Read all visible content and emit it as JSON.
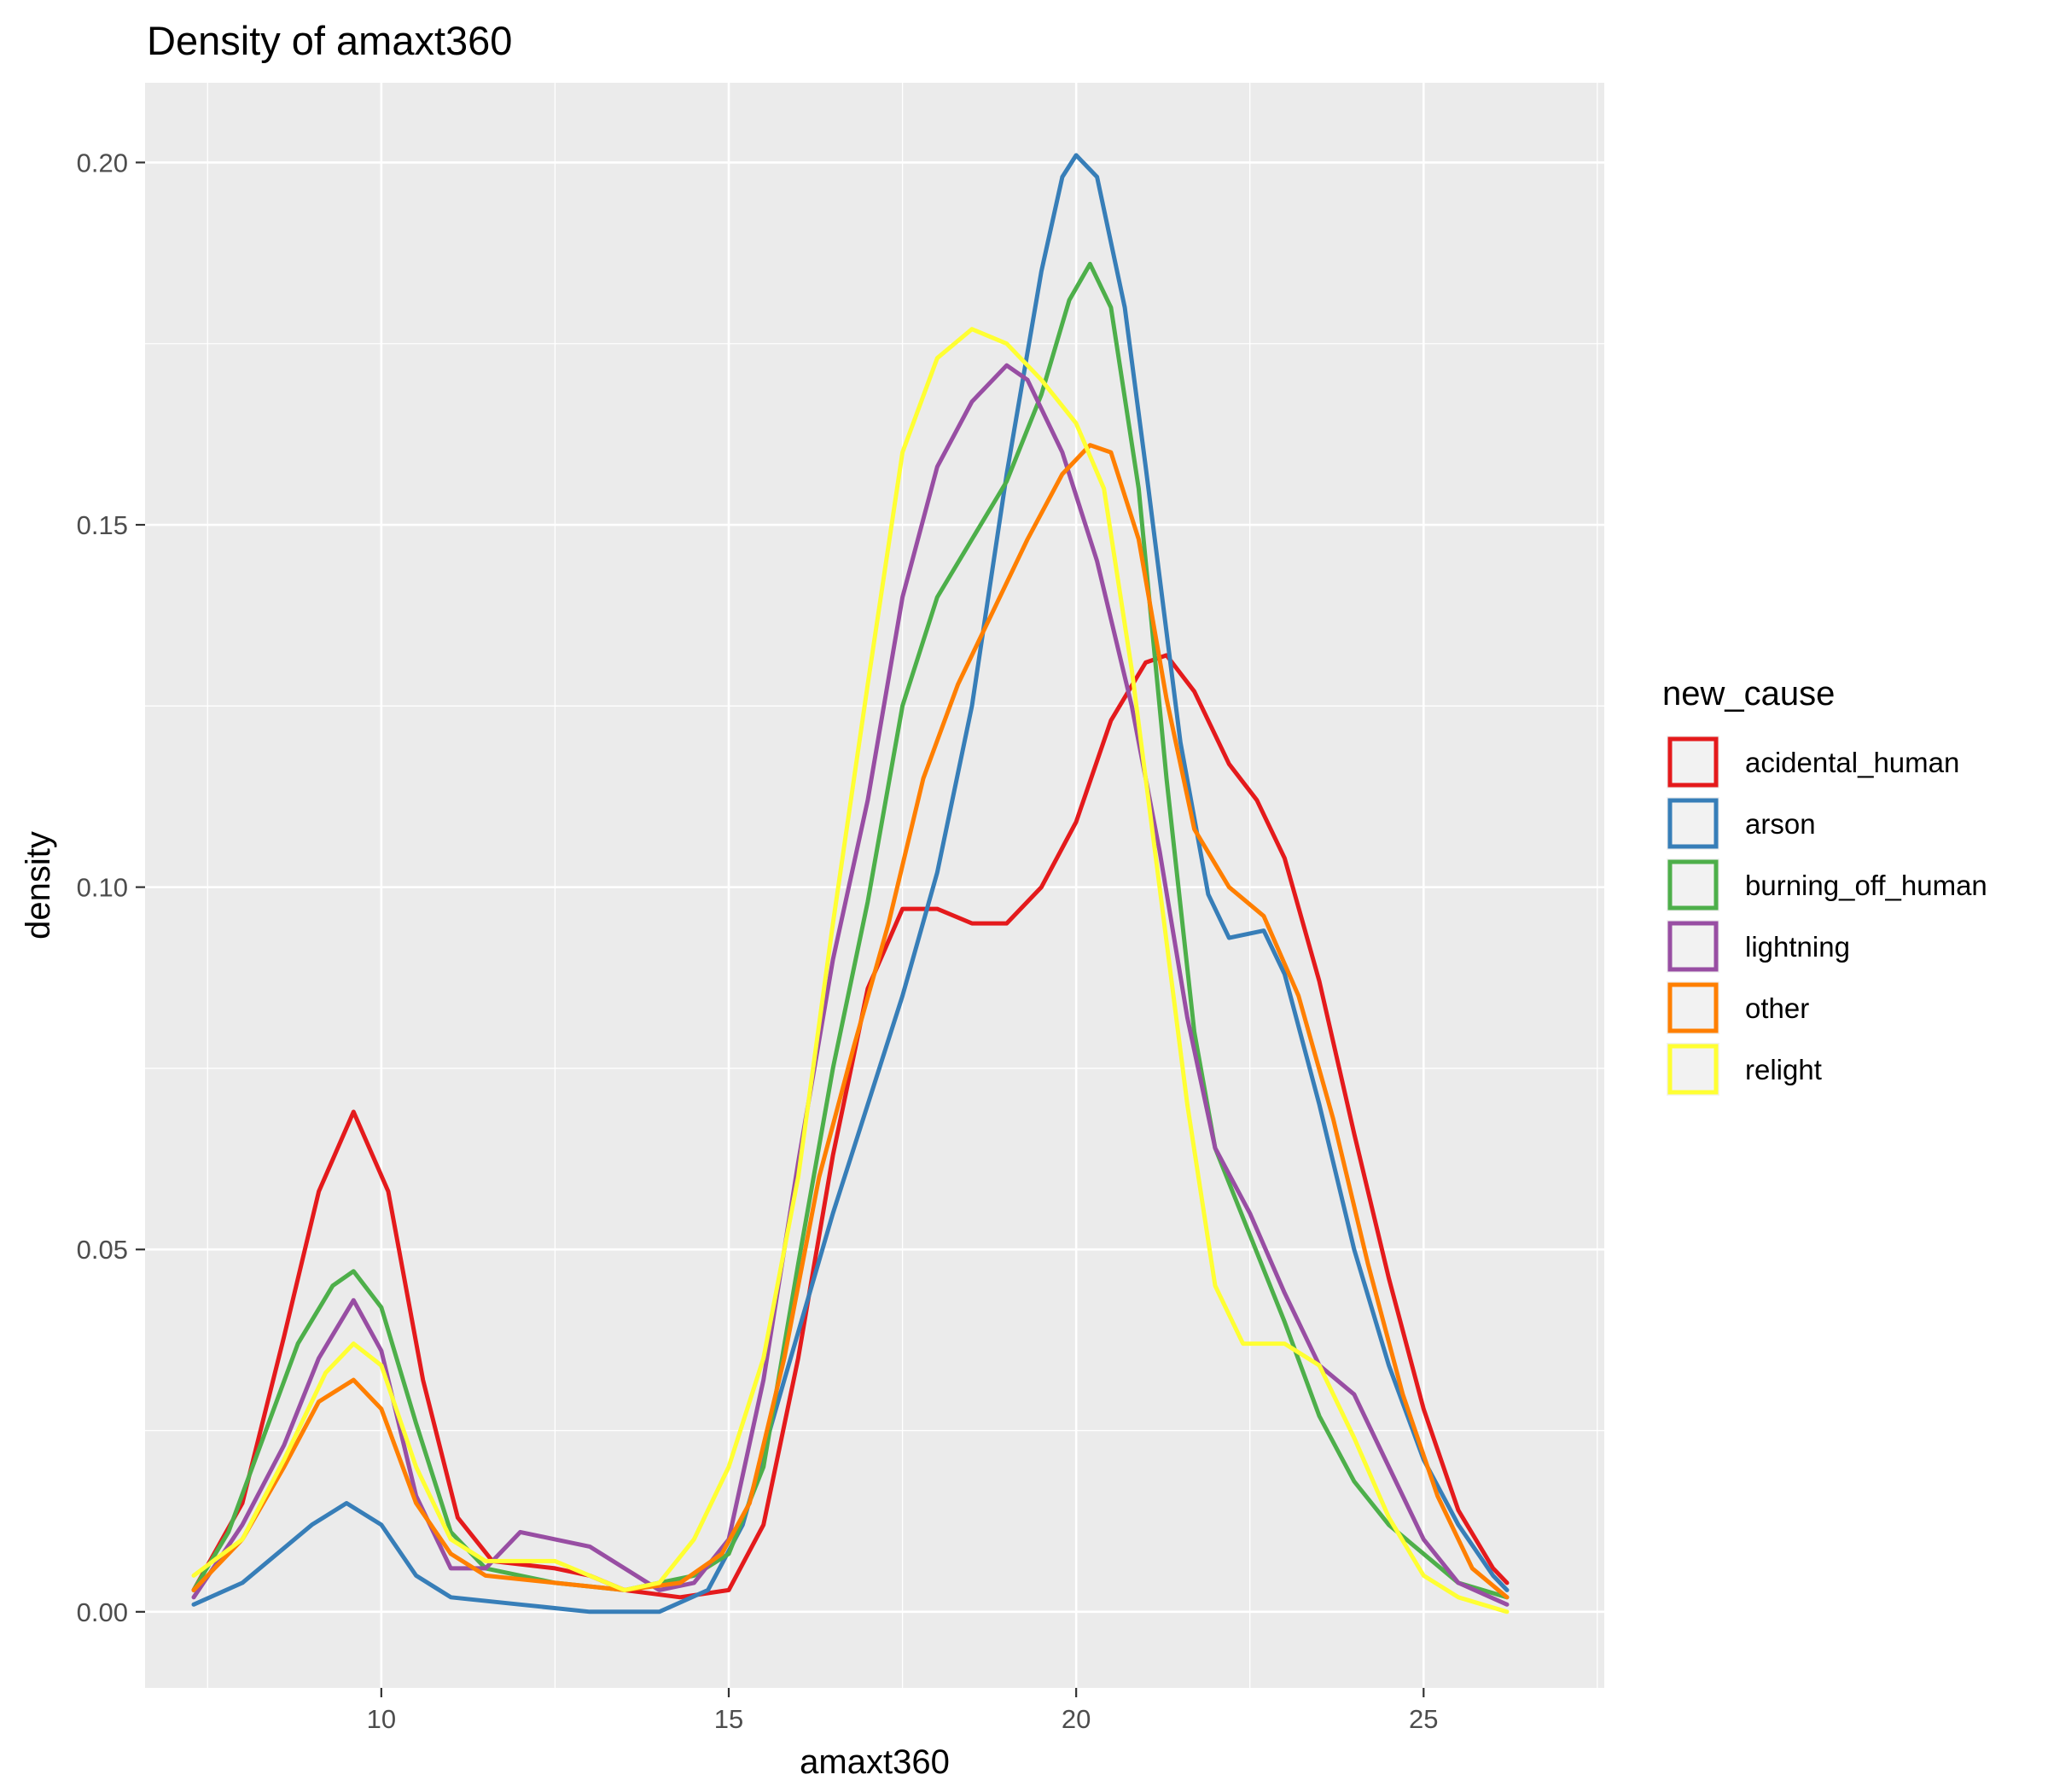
{
  "chart_data": {
    "type": "line",
    "title": "Density of amaxt360",
    "xlabel": "amaxt360",
    "ylabel": "density",
    "xlim": [
      6.6,
      27.6
    ],
    "ylim": [
      -0.0105,
      0.211
    ],
    "x_ticks": [
      10,
      15,
      20,
      25
    ],
    "y_ticks": [
      0.0,
      0.05,
      0.1,
      0.15,
      0.2
    ],
    "x_tick_labels": [
      "10",
      "15",
      "20",
      "25"
    ],
    "y_tick_labels": [
      "0.00",
      "0.05",
      "0.10",
      "0.15",
      "0.20"
    ],
    "grid": true,
    "legend": {
      "title": "new_cause",
      "position": "right"
    },
    "series": [
      {
        "name": "acidental_human",
        "color": "#E41A1C",
        "points": [
          [
            7.3,
            0.003
          ],
          [
            8.0,
            0.015
          ],
          [
            8.6,
            0.038
          ],
          [
            9.1,
            0.058
          ],
          [
            9.6,
            0.069
          ],
          [
            10.1,
            0.058
          ],
          [
            10.6,
            0.032
          ],
          [
            11.1,
            0.013
          ],
          [
            11.6,
            0.007
          ],
          [
            12.5,
            0.006
          ],
          [
            13.0,
            0.005
          ],
          [
            13.5,
            0.003
          ],
          [
            14.3,
            0.002
          ],
          [
            15.0,
            0.003
          ],
          [
            15.5,
            0.012
          ],
          [
            16.0,
            0.035
          ],
          [
            16.5,
            0.063
          ],
          [
            17.0,
            0.086
          ],
          [
            17.5,
            0.097
          ],
          [
            18.0,
            0.097
          ],
          [
            18.5,
            0.095
          ],
          [
            19.0,
            0.095
          ],
          [
            19.5,
            0.1
          ],
          [
            20.0,
            0.109
          ],
          [
            20.5,
            0.123
          ],
          [
            21.0,
            0.131
          ],
          [
            21.3,
            0.132
          ],
          [
            21.7,
            0.127
          ],
          [
            22.2,
            0.117
          ],
          [
            22.6,
            0.112
          ],
          [
            23.0,
            0.104
          ],
          [
            23.5,
            0.087
          ],
          [
            24.0,
            0.066
          ],
          [
            24.5,
            0.046
          ],
          [
            25.0,
            0.028
          ],
          [
            25.5,
            0.014
          ],
          [
            26.0,
            0.006
          ],
          [
            26.2,
            0.004
          ]
        ]
      },
      {
        "name": "arson",
        "color": "#377EB8",
        "points": [
          [
            7.3,
            0.001
          ],
          [
            8.0,
            0.004
          ],
          [
            8.5,
            0.008
          ],
          [
            9.0,
            0.012
          ],
          [
            9.5,
            0.015
          ],
          [
            10.0,
            0.012
          ],
          [
            10.5,
            0.005
          ],
          [
            11.0,
            0.002
          ],
          [
            12.0,
            0.001
          ],
          [
            13.0,
            0.0
          ],
          [
            14.0,
            0.0
          ],
          [
            14.7,
            0.003
          ],
          [
            15.2,
            0.012
          ],
          [
            15.8,
            0.032
          ],
          [
            16.5,
            0.055
          ],
          [
            17.0,
            0.07
          ],
          [
            17.5,
            0.085
          ],
          [
            18.0,
            0.102
          ],
          [
            18.5,
            0.125
          ],
          [
            19.0,
            0.157
          ],
          [
            19.5,
            0.185
          ],
          [
            19.8,
            0.198
          ],
          [
            20.0,
            0.201
          ],
          [
            20.3,
            0.198
          ],
          [
            20.7,
            0.18
          ],
          [
            21.0,
            0.158
          ],
          [
            21.5,
            0.12
          ],
          [
            21.9,
            0.099
          ],
          [
            22.2,
            0.093
          ],
          [
            22.7,
            0.094
          ],
          [
            23.0,
            0.088
          ],
          [
            23.5,
            0.07
          ],
          [
            24.0,
            0.05
          ],
          [
            24.5,
            0.034
          ],
          [
            25.0,
            0.021
          ],
          [
            25.5,
            0.012
          ],
          [
            26.0,
            0.005
          ],
          [
            26.2,
            0.003
          ]
        ]
      },
      {
        "name": "burning_off_human",
        "color": "#4DAF4A",
        "points": [
          [
            7.3,
            0.003
          ],
          [
            7.8,
            0.011
          ],
          [
            8.3,
            0.024
          ],
          [
            8.8,
            0.037
          ],
          [
            9.3,
            0.045
          ],
          [
            9.6,
            0.047
          ],
          [
            10.0,
            0.042
          ],
          [
            10.5,
            0.026
          ],
          [
            11.0,
            0.011
          ],
          [
            11.5,
            0.006
          ],
          [
            12.5,
            0.004
          ],
          [
            13.5,
            0.003
          ],
          [
            14.5,
            0.005
          ],
          [
            15.0,
            0.008
          ],
          [
            15.5,
            0.02
          ],
          [
            16.0,
            0.048
          ],
          [
            16.5,
            0.075
          ],
          [
            17.0,
            0.098
          ],
          [
            17.5,
            0.125
          ],
          [
            18.0,
            0.14
          ],
          [
            18.5,
            0.148
          ],
          [
            19.0,
            0.156
          ],
          [
            19.5,
            0.168
          ],
          [
            19.9,
            0.181
          ],
          [
            20.2,
            0.186
          ],
          [
            20.5,
            0.18
          ],
          [
            20.9,
            0.155
          ],
          [
            21.3,
            0.115
          ],
          [
            21.7,
            0.08
          ],
          [
            22.0,
            0.064
          ],
          [
            22.5,
            0.052
          ],
          [
            23.0,
            0.04
          ],
          [
            23.5,
            0.027
          ],
          [
            24.0,
            0.018
          ],
          [
            24.5,
            0.012
          ],
          [
            25.0,
            0.008
          ],
          [
            25.5,
            0.004
          ],
          [
            26.2,
            0.002
          ]
        ]
      },
      {
        "name": "lightning",
        "color": "#984EA3",
        "points": [
          [
            7.3,
            0.002
          ],
          [
            8.0,
            0.012
          ],
          [
            8.6,
            0.023
          ],
          [
            9.1,
            0.035
          ],
          [
            9.6,
            0.043
          ],
          [
            10.0,
            0.036
          ],
          [
            10.5,
            0.016
          ],
          [
            11.0,
            0.006
          ],
          [
            11.5,
            0.006
          ],
          [
            12.0,
            0.011
          ],
          [
            12.5,
            0.01
          ],
          [
            13.0,
            0.009
          ],
          [
            13.5,
            0.006
          ],
          [
            14.0,
            0.003
          ],
          [
            14.5,
            0.004
          ],
          [
            15.0,
            0.01
          ],
          [
            15.5,
            0.032
          ],
          [
            16.0,
            0.062
          ],
          [
            16.5,
            0.09
          ],
          [
            17.0,
            0.112
          ],
          [
            17.5,
            0.14
          ],
          [
            18.0,
            0.158
          ],
          [
            18.5,
            0.167
          ],
          [
            19.0,
            0.172
          ],
          [
            19.3,
            0.17
          ],
          [
            19.8,
            0.16
          ],
          [
            20.3,
            0.145
          ],
          [
            20.8,
            0.125
          ],
          [
            21.2,
            0.105
          ],
          [
            21.6,
            0.082
          ],
          [
            22.0,
            0.064
          ],
          [
            22.5,
            0.055
          ],
          [
            23.0,
            0.044
          ],
          [
            23.5,
            0.034
          ],
          [
            24.0,
            0.03
          ],
          [
            24.4,
            0.022
          ],
          [
            25.0,
            0.01
          ],
          [
            25.5,
            0.004
          ],
          [
            26.2,
            0.001
          ]
        ]
      },
      {
        "name": "other",
        "color": "#FF7F00",
        "points": [
          [
            7.3,
            0.003
          ],
          [
            8.0,
            0.01
          ],
          [
            8.6,
            0.02
          ],
          [
            9.1,
            0.029
          ],
          [
            9.6,
            0.032
          ],
          [
            10.0,
            0.028
          ],
          [
            10.5,
            0.015
          ],
          [
            11.0,
            0.008
          ],
          [
            11.5,
            0.005
          ],
          [
            12.5,
            0.004
          ],
          [
            13.5,
            0.003
          ],
          [
            14.3,
            0.004
          ],
          [
            14.9,
            0.008
          ],
          [
            15.3,
            0.015
          ],
          [
            15.8,
            0.035
          ],
          [
            16.3,
            0.06
          ],
          [
            16.8,
            0.078
          ],
          [
            17.3,
            0.095
          ],
          [
            17.8,
            0.115
          ],
          [
            18.3,
            0.128
          ],
          [
            18.8,
            0.138
          ],
          [
            19.3,
            0.148
          ],
          [
            19.8,
            0.157
          ],
          [
            20.2,
            0.161
          ],
          [
            20.5,
            0.16
          ],
          [
            20.9,
            0.148
          ],
          [
            21.3,
            0.126
          ],
          [
            21.7,
            0.108
          ],
          [
            22.2,
            0.1
          ],
          [
            22.7,
            0.096
          ],
          [
            23.2,
            0.085
          ],
          [
            23.7,
            0.068
          ],
          [
            24.2,
            0.048
          ],
          [
            24.7,
            0.03
          ],
          [
            25.2,
            0.016
          ],
          [
            25.7,
            0.006
          ],
          [
            26.2,
            0.002
          ]
        ]
      },
      {
        "name": "relight",
        "color": "#FFFF33",
        "points": [
          [
            7.3,
            0.005
          ],
          [
            8.0,
            0.01
          ],
          [
            8.6,
            0.021
          ],
          [
            9.2,
            0.033
          ],
          [
            9.6,
            0.037
          ],
          [
            10.0,
            0.034
          ],
          [
            10.5,
            0.02
          ],
          [
            11.0,
            0.01
          ],
          [
            11.5,
            0.007
          ],
          [
            12.5,
            0.007
          ],
          [
            13.0,
            0.005
          ],
          [
            13.5,
            0.003
          ],
          [
            14.0,
            0.004
          ],
          [
            14.5,
            0.01
          ],
          [
            15.0,
            0.02
          ],
          [
            15.5,
            0.035
          ],
          [
            16.0,
            0.06
          ],
          [
            16.5,
            0.095
          ],
          [
            17.0,
            0.128
          ],
          [
            17.5,
            0.16
          ],
          [
            18.0,
            0.173
          ],
          [
            18.5,
            0.177
          ],
          [
            19.0,
            0.175
          ],
          [
            19.5,
            0.17
          ],
          [
            20.0,
            0.164
          ],
          [
            20.4,
            0.155
          ],
          [
            20.8,
            0.13
          ],
          [
            21.2,
            0.1
          ],
          [
            21.6,
            0.07
          ],
          [
            22.0,
            0.045
          ],
          [
            22.4,
            0.037
          ],
          [
            23.0,
            0.037
          ],
          [
            23.5,
            0.034
          ],
          [
            24.0,
            0.024
          ],
          [
            24.5,
            0.013
          ],
          [
            25.0,
            0.005
          ],
          [
            25.5,
            0.002
          ],
          [
            26.2,
            0.0
          ]
        ]
      }
    ]
  }
}
